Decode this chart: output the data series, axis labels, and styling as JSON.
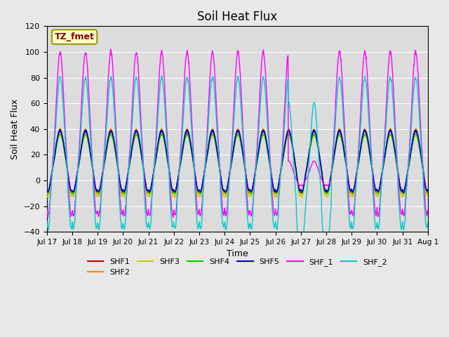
{
  "title": "Soil Heat Flux",
  "ylabel": "Soil Heat Flux",
  "xlabel": "Time",
  "ylim": [
    -40,
    120
  ],
  "background_color": "#dcdcdc",
  "series_colors": {
    "SHF1": "#cc0000",
    "SHF2": "#ff8800",
    "SHF3": "#cccc00",
    "SHF4": "#00cc00",
    "SHF5": "#0000cc",
    "SHF_1": "#ff00ff",
    "SHF_2": "#00cccc"
  },
  "tz_label": "TZ_fmet",
  "tz_label_color": "#8b0000",
  "tz_box_facecolor": "#ffffcc",
  "tz_box_edgecolor": "#999900",
  "n_days": 15,
  "tick_labels": [
    "Jul 17",
    "Jul 18",
    "Jul 19",
    "Jul 20",
    "Jul 21",
    "Jul 22",
    "Jul 23",
    "Jul 24",
    "Jul 25",
    "Jul 26",
    "Jul 27",
    "Jul 28",
    "Jul 29",
    "Jul 30",
    "Jul 31",
    "Aug 1"
  ],
  "grid_color": "#ffffff",
  "title_fontsize": 12
}
